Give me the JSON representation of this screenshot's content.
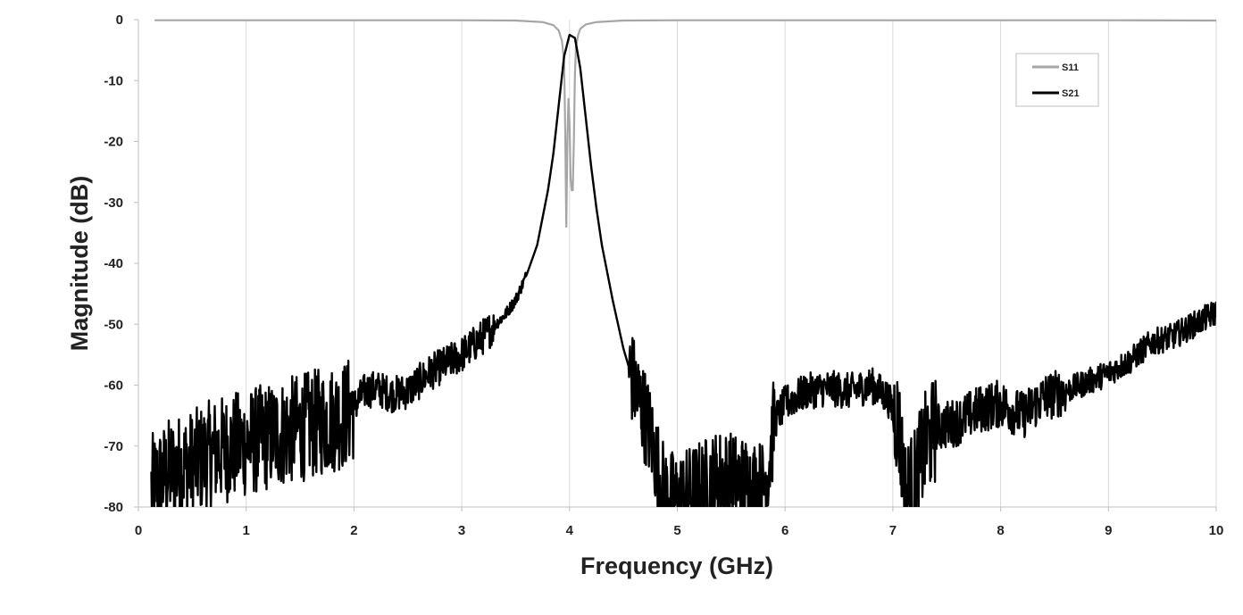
{
  "chart_data": {
    "type": "line",
    "title": "",
    "xlabel": "Frequency (GHz)",
    "ylabel": "Magnitude (dB)",
    "xlim": [
      0,
      10
    ],
    "ylim": [
      -80,
      0
    ],
    "xticks": [
      "0",
      "1",
      "2",
      "3",
      "4",
      "5",
      "6",
      "7",
      "8",
      "9",
      "10"
    ],
    "yticks": [
      "0",
      "-10",
      "-20",
      "-30",
      "-40",
      "-50",
      "-60",
      "-70",
      "-80"
    ],
    "grid": "vertical",
    "legend_position": "top-right",
    "series": [
      {
        "name": "S11",
        "color": "#a6a6a6",
        "points": [
          [
            0.15,
            -0.1
          ],
          [
            1,
            -0.1
          ],
          [
            2,
            -0.1
          ],
          [
            3,
            -0.1
          ],
          [
            3.5,
            -0.15
          ],
          [
            3.75,
            -0.4
          ],
          [
            3.85,
            -0.9
          ],
          [
            3.9,
            -1.8
          ],
          [
            3.93,
            -3.5
          ],
          [
            3.95,
            -7
          ],
          [
            3.96,
            -18
          ],
          [
            3.97,
            -34
          ],
          [
            3.98,
            -20
          ],
          [
            3.99,
            -13
          ],
          [
            4.0,
            -17
          ],
          [
            4.01,
            -26
          ],
          [
            4.02,
            -28
          ],
          [
            4.03,
            -28
          ],
          [
            4.04,
            -20
          ],
          [
            4.05,
            -9
          ],
          [
            4.06,
            -4.5
          ],
          [
            4.08,
            -2.5
          ],
          [
            4.1,
            -1.5
          ],
          [
            4.15,
            -0.8
          ],
          [
            4.25,
            -0.4
          ],
          [
            4.5,
            -0.15
          ],
          [
            5,
            -0.1
          ],
          [
            6,
            -0.1
          ],
          [
            7,
            -0.1
          ],
          [
            8,
            -0.1
          ],
          [
            9,
            -0.1
          ],
          [
            10,
            -0.15
          ]
        ]
      },
      {
        "name": "S21",
        "color": "#000000",
        "points": [
          [
            0.12,
            -77
          ],
          [
            0.3,
            -74
          ],
          [
            0.5,
            -73
          ],
          [
            0.7,
            -71
          ],
          [
            0.9,
            -70
          ],
          [
            1.1,
            -69
          ],
          [
            1.3,
            -68
          ],
          [
            1.5,
            -67
          ],
          [
            1.7,
            -66
          ],
          [
            1.9,
            -65
          ],
          [
            2.0,
            -63.5
          ],
          [
            2.1,
            -61
          ],
          [
            2.2,
            -60.5
          ],
          [
            2.35,
            -61.5
          ],
          [
            2.5,
            -61
          ],
          [
            2.7,
            -58
          ],
          [
            2.9,
            -56
          ],
          [
            3.0,
            -55
          ],
          [
            3.2,
            -52
          ],
          [
            3.4,
            -48.5
          ],
          [
            3.5,
            -46
          ],
          [
            3.6,
            -42
          ],
          [
            3.7,
            -37
          ],
          [
            3.8,
            -28
          ],
          [
            3.85,
            -22
          ],
          [
            3.9,
            -14
          ],
          [
            3.95,
            -6
          ],
          [
            4.0,
            -2.5
          ],
          [
            4.05,
            -3
          ],
          [
            4.1,
            -8
          ],
          [
            4.15,
            -16
          ],
          [
            4.2,
            -24
          ],
          [
            4.25,
            -31
          ],
          [
            4.3,
            -37
          ],
          [
            4.4,
            -46
          ],
          [
            4.5,
            -54
          ],
          [
            4.6,
            -60
          ],
          [
            4.7,
            -65
          ],
          [
            4.75,
            -68
          ],
          [
            4.8,
            -72
          ],
          [
            4.85,
            -76
          ],
          [
            4.9,
            -78
          ],
          [
            5.0,
            -79
          ],
          [
            5.2,
            -77
          ],
          [
            5.4,
            -75
          ],
          [
            5.6,
            -76
          ],
          [
            5.8,
            -77
          ],
          [
            5.85,
            -73
          ],
          [
            5.9,
            -66
          ],
          [
            6.0,
            -63
          ],
          [
            6.2,
            -61
          ],
          [
            6.4,
            -60.5
          ],
          [
            6.6,
            -61
          ],
          [
            6.8,
            -60
          ],
          [
            6.95,
            -62
          ],
          [
            7.05,
            -66
          ],
          [
            7.12,
            -78
          ],
          [
            7.2,
            -76
          ],
          [
            7.3,
            -70
          ],
          [
            7.4,
            -67
          ],
          [
            7.6,
            -66
          ],
          [
            7.8,
            -64
          ],
          [
            8.0,
            -63
          ],
          [
            8.2,
            -65
          ],
          [
            8.4,
            -62
          ],
          [
            8.6,
            -61
          ],
          [
            8.8,
            -59.5
          ],
          [
            9.0,
            -58
          ],
          [
            9.2,
            -56
          ],
          [
            9.4,
            -53
          ],
          [
            9.6,
            -52
          ],
          [
            9.8,
            -50
          ],
          [
            10.0,
            -48
          ]
        ]
      }
    ]
  }
}
